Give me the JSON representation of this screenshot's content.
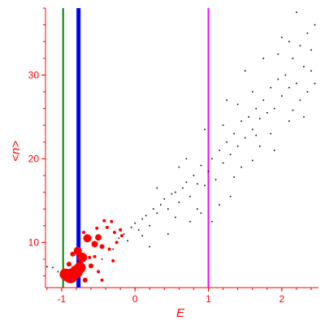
{
  "chart_data": {
    "type": "scatter",
    "xlabel": "E",
    "ylabel": "<n>",
    "xlim": [
      -1.22,
      2.5
    ],
    "ylim": [
      4.6,
      38
    ],
    "x_ticks": [
      -1,
      0,
      1,
      2
    ],
    "y_ticks": [
      10,
      20,
      30
    ],
    "x_tick_labels": [
      "-1",
      "0",
      "1",
      "2"
    ],
    "y_tick_labels": [
      "10",
      "20",
      "30"
    ],
    "grid": false,
    "axis_color": "#ff0000",
    "vlines": [
      {
        "x": -0.98,
        "color": "#008000",
        "width": 2
      },
      {
        "x": -0.77,
        "color": "#0000ff",
        "width": 5
      },
      {
        "x": 1.0,
        "color": "#ff00ff",
        "width": 2
      }
    ],
    "series": [
      {
        "color": "#000000",
        "marker": "dot",
        "points": [
          [
            -1.2,
            7.1
          ],
          [
            -1.12,
            7.0
          ],
          [
            -1.05,
            6.5
          ],
          [
            -0.92,
            6.2
          ],
          [
            -0.85,
            6.6
          ],
          [
            -0.6,
            7.3
          ],
          [
            -0.45,
            8.0
          ],
          [
            -0.3,
            9.2
          ],
          [
            -0.22,
            10.5
          ],
          [
            -0.15,
            11.0
          ],
          [
            -0.1,
            10.2
          ],
          [
            -0.05,
            11.8
          ],
          [
            0.0,
            12.3
          ],
          [
            0.05,
            11.5
          ],
          [
            0.1,
            12.8
          ],
          [
            0.15,
            13.2
          ],
          [
            0.2,
            12.0
          ],
          [
            0.25,
            14.0
          ],
          [
            0.3,
            13.5
          ],
          [
            0.35,
            14.5
          ],
          [
            0.4,
            15.2
          ],
          [
            0.45,
            14.0
          ],
          [
            0.5,
            15.8
          ],
          [
            0.55,
            16.0
          ],
          [
            0.6,
            14.8
          ],
          [
            0.65,
            16.5
          ],
          [
            0.7,
            17.2
          ],
          [
            0.75,
            15.5
          ],
          [
            0.8,
            18.0
          ],
          [
            0.85,
            17.0
          ],
          [
            0.9,
            19.2
          ],
          [
            0.95,
            16.8
          ],
          [
            1.0,
            18.5
          ],
          [
            1.05,
            20.0
          ],
          [
            1.1,
            17.5
          ],
          [
            1.15,
            21.0
          ],
          [
            1.2,
            19.5
          ],
          [
            1.25,
            22.0
          ],
          [
            1.3,
            20.5
          ],
          [
            1.35,
            23.0
          ],
          [
            1.4,
            21.5
          ],
          [
            1.45,
            24.5
          ],
          [
            1.5,
            22.5
          ],
          [
            1.55,
            25.0
          ],
          [
            1.6,
            23.5
          ],
          [
            1.65,
            26.0
          ],
          [
            1.7,
            24.8
          ],
          [
            1.75,
            27.0
          ],
          [
            1.8,
            25.5
          ],
          [
            1.85,
            28.5
          ],
          [
            1.9,
            26.0
          ],
          [
            1.95,
            29.5
          ],
          [
            2.0,
            27.5
          ],
          [
            2.05,
            30.0
          ],
          [
            2.1,
            28.5
          ],
          [
            2.15,
            32.0
          ],
          [
            2.2,
            29.0
          ],
          [
            2.25,
            33.5
          ],
          [
            2.3,
            31.0
          ],
          [
            2.35,
            35.0
          ],
          [
            2.4,
            30.5
          ],
          [
            2.45,
            36.0
          ],
          [
            2.2,
            37.5
          ],
          [
            2.1,
            34.0
          ],
          [
            1.75,
            32.0
          ],
          [
            1.6,
            28.0
          ],
          [
            1.4,
            26.5
          ],
          [
            1.2,
            24.0
          ],
          [
            0.9,
            13.5
          ],
          [
            0.6,
            19.0
          ],
          [
            0.3,
            16.5
          ],
          [
            0.1,
            10.8
          ],
          [
            1.3,
            15.5
          ],
          [
            1.6,
            19.8
          ],
          [
            1.9,
            21.0
          ],
          [
            2.1,
            24.5
          ],
          [
            2.3,
            25.0
          ],
          [
            2.45,
            29.0
          ],
          [
            1.05,
            12.5
          ],
          [
            0.75,
            12.5
          ],
          [
            0.2,
            9.5
          ],
          [
            0.45,
            11.0
          ],
          [
            0.95,
            23.5
          ],
          [
            1.5,
            30.5
          ],
          [
            1.85,
            23.0
          ],
          [
            2.0,
            34.5
          ],
          [
            2.4,
            33.0
          ],
          [
            1.15,
            14.5
          ],
          [
            0.85,
            14.0
          ],
          [
            0.55,
            13.0
          ],
          [
            1.35,
            17.8
          ],
          [
            1.7,
            21.5
          ],
          [
            2.25,
            27.0
          ],
          [
            1.95,
            32.5
          ],
          [
            1.25,
            27.0
          ],
          [
            0.7,
            20.0
          ],
          [
            1.45,
            19.0
          ],
          [
            1.65,
            22.8
          ],
          [
            2.35,
            28.0
          ],
          [
            2.15,
            25.8
          ]
        ]
      },
      {
        "color": "#ff0000",
        "marker": "blob",
        "points": [
          [
            -0.95,
            6.2,
            7
          ],
          [
            -0.88,
            6.0,
            9
          ],
          [
            -0.8,
            6.5,
            8
          ],
          [
            -0.75,
            7.0,
            7
          ],
          [
            -0.72,
            8.2,
            6
          ],
          [
            -0.78,
            9.0,
            5
          ],
          [
            -0.65,
            10.5,
            5
          ],
          [
            -0.55,
            9.8,
            4
          ],
          [
            -0.5,
            10.6,
            4
          ],
          [
            -0.45,
            9.5,
            3
          ],
          [
            -0.38,
            11.8,
            2
          ],
          [
            -0.32,
            12.5,
            2
          ],
          [
            -0.28,
            11.2,
            2
          ],
          [
            -0.25,
            10.0,
            2
          ],
          [
            -0.2,
            11.5,
            2
          ],
          [
            -0.18,
            10.8,
            2
          ],
          [
            -0.6,
            7.2,
            3
          ],
          [
            -0.5,
            6.5,
            2
          ],
          [
            -0.55,
            8.3,
            2
          ],
          [
            -0.45,
            5.5,
            2
          ],
          [
            -0.68,
            5.5,
            3
          ],
          [
            -0.9,
            7.4,
            3
          ],
          [
            -0.85,
            8.6,
            3
          ],
          [
            -0.62,
            8.2,
            2
          ],
          [
            -0.42,
            12.6,
            2
          ],
          [
            -0.35,
            9.2,
            2
          ],
          [
            -0.3,
            7.8,
            2
          ],
          [
            -0.52,
            11.7,
            2
          ],
          [
            -0.7,
            11.2,
            2
          ],
          [
            -0.95,
            5.6,
            2
          ]
        ]
      }
    ]
  }
}
